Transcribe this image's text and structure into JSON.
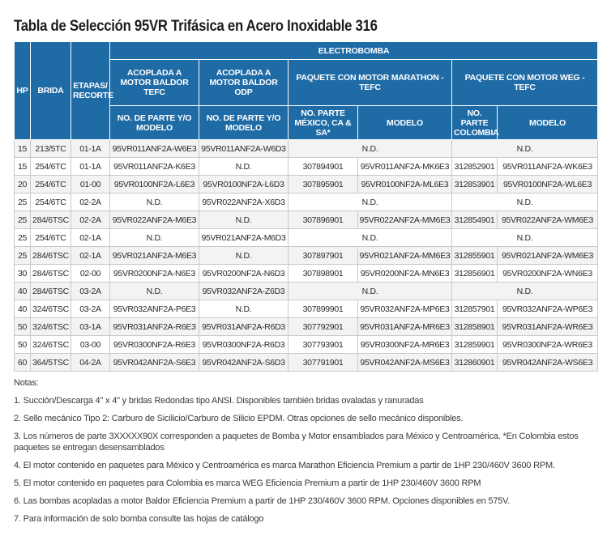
{
  "title": "Tabla de Selección 95VR Trifásica en Acero Inoxidable 316",
  "header": {
    "hp": "HP",
    "brida": "BRIDA",
    "etapas": "ETAPAS/ RECORTE",
    "electrobomba": "ELECTROBOMBA",
    "group_baldor_tefc": "ACOPLADA A MOTOR BALDOR TEFC",
    "group_baldor_odp": "ACOPLADA A MOTOR BALDOR ODP",
    "group_marathon": "PAQUETE CON MOTOR MARATHON - TEFC",
    "group_weg": "PAQUETE CON MOTOR WEG - TEFC",
    "sub_parte_modelo_1": "NO. DE PARTE Y/O MODELO",
    "sub_parte_modelo_2": "NO. DE PARTE Y/O MODELO",
    "sub_parte_mexico": "NO. PARTE MÉXICO, CA & SA*",
    "sub_modelo_1": "MODELO",
    "sub_parte_colombia": "NO. PARTE COLOMBIA",
    "sub_modelo_2": "MODELO"
  },
  "rows": [
    [
      "15",
      "213/5TC",
      "01-1A",
      "95VR011ANF2A-W6E3",
      "95VR011ANF2A-W6D3",
      "N.D.",
      "N.D."
    ],
    [
      "15",
      "254/6TC",
      "01-1A",
      "95VR011ANF2A-K6E3",
      "N.D.",
      "307894901",
      "95VR011ANF2A-MK6E3",
      "312852901",
      "95VR011ANF2A-WK6E3"
    ],
    [
      "20",
      "254/6TC",
      "01-00",
      "95VR0100NF2A-L6E3",
      "95VR0100NF2A-L6D3",
      "307895901",
      "95VR0100NF2A-ML6E3",
      "312853901",
      "95VR0100NF2A-WL6E3"
    ],
    [
      "25",
      "254/6TC",
      "02-2A",
      "N.D.",
      "95VR022ANF2A-X6D3",
      "N.D.",
      "N.D."
    ],
    [
      "25",
      "284/6TSC",
      "02-2A",
      "95VR022ANF2A-M6E3",
      "N.D.",
      "307896901",
      "95VR022ANF2A-MM6E3",
      "312854901",
      "95VR022ANF2A-WM6E3"
    ],
    [
      "25",
      "254/6TC",
      "02-1A",
      "N.D.",
      "95VR021ANF2A-M6D3",
      "N.D.",
      "N.D."
    ],
    [
      "25",
      "284/6TSC",
      "02-1A",
      "95VR021ANF2A-M6E3",
      "N.D.",
      "307897901",
      "95VR021ANF2A-MM6E3",
      "312855901",
      "95VR021ANF2A-WM6E3"
    ],
    [
      "30",
      "284/6TSC",
      "02-00",
      "95VR0200NF2A-N6E3",
      "95VR0200NF2A-N6D3",
      "307898901",
      "95VR0200NF2A-MN6E3",
      "312856901",
      "95VR0200NF2A-WN6E3"
    ],
    [
      "40",
      "284/6TSC",
      "03-2A",
      "N.D.",
      "95VR032ANF2A-Z6D3",
      "N.D.",
      "N.D."
    ],
    [
      "40",
      "324/6TSC",
      "03-2A",
      "95VR032ANF2A-P6E3",
      "N.D.",
      "307899901",
      "95VR032ANF2A-MP6E3",
      "312857901",
      "95VR032ANF2A-WP6E3"
    ],
    [
      "50",
      "324/6TSC",
      "03-1A",
      "95VR031ANF2A-R6E3",
      "95VR031ANF2A-R6D3",
      "307792901",
      "95VR031ANF2A-MR6E3",
      "312858901",
      "95VR031ANF2A-WR6E3"
    ],
    [
      "50",
      "324/6TSC",
      "03-00",
      "95VR0300NF2A-R6E3",
      "95VR0300NF2A-R6D3",
      "307793901",
      "95VR0300NF2A-MR6E3",
      "312859901",
      "95VR0300NF2A-WR6E3"
    ],
    [
      "60",
      "364/5TSC",
      "04-2A",
      "95VR042ANF2A-S6E3",
      "95VR042ANF2A-S6D3",
      "307791901",
      "95VR042ANF2A-MS6E3",
      "312860901",
      "95VR042ANF2A-WS6E3"
    ]
  ],
  "notes": {
    "heading": "Notas:",
    "items": [
      "1. Succión/Descarga 4\" x 4\" y bridas Redondas tipo ANSI. Disponibles también bridas ovaladas y ranuradas",
      "2. Sello mecánico Tipo 2: Carburo de Sicilicio/Carburo de Silicio EPDM. Otras opciones de sello mecánico disponibles.",
      "3. Los números de parte 3XXXXX90X corresponden a paquetes de Bomba y Motor ensamblados para México y Centroamérica. *En Colombia estos paquetes se entregan desensamblados",
      "4. El motor contenido en paquetes para México y Centroamérica es marca Marathon Eficiencia Premium a partir de 1HP 230/460V 3600 RPM.",
      "5. El motor contenido en paquetes para Colombia es marca WEG Eficiencia Premium a partir de 1HP 230/460V 3600 RPM",
      "6. Las bombas acopladas a motor Baldor Eficiencia Premium a partir de 1HP 230/460V 3600 RPM. Opciones disponibles en 575V.",
      "7. Para información de solo bomba consulte las hojas de catálogo"
    ]
  }
}
